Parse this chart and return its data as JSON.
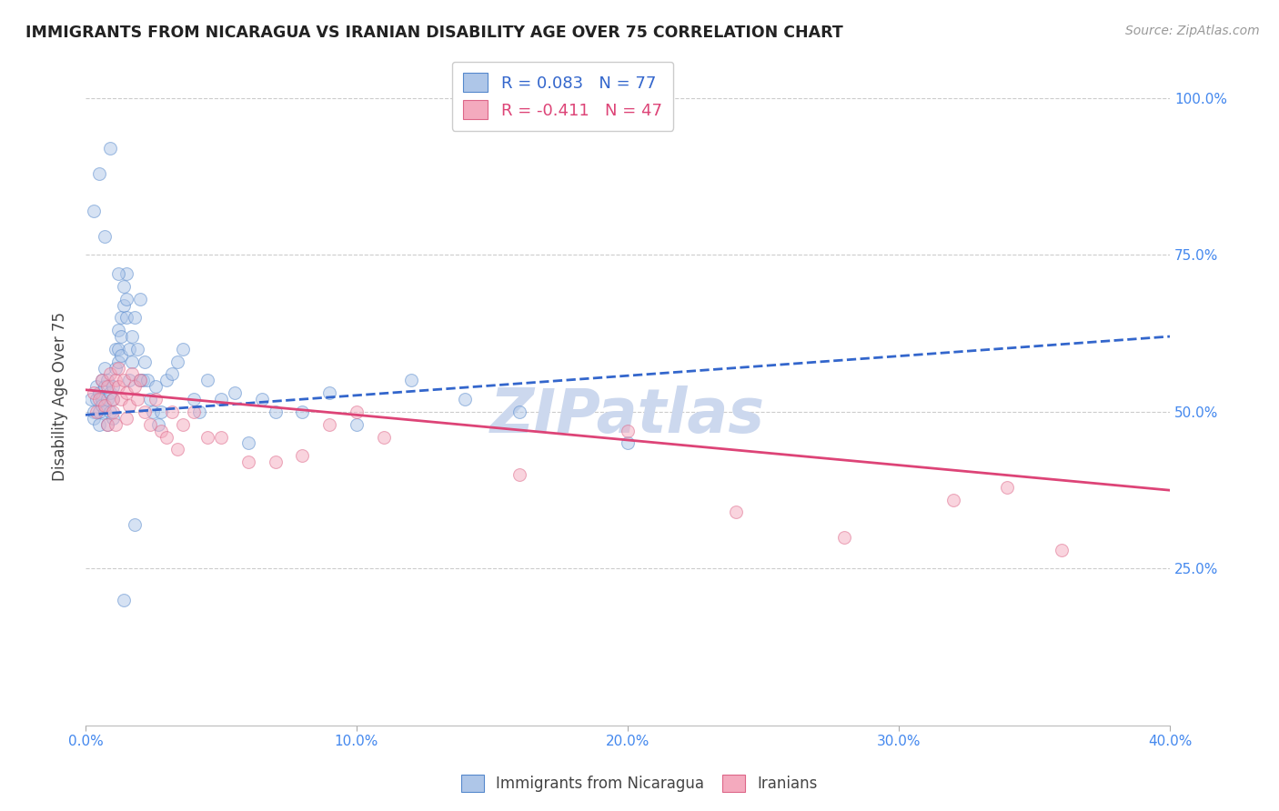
{
  "title": "IMMIGRANTS FROM NICARAGUA VS IRANIAN DISABILITY AGE OVER 75 CORRELATION CHART",
  "source": "Source: ZipAtlas.com",
  "ylabel": "Disability Age Over 75",
  "watermark": "ZIPatlas",
  "xlim": [
    0.0,
    0.4
  ],
  "ylim": [
    0.0,
    1.05
  ],
  "xtick_labels": [
    "0.0%",
    "10.0%",
    "20.0%",
    "30.0%",
    "40.0%"
  ],
  "xtick_vals": [
    0.0,
    0.1,
    0.2,
    0.3,
    0.4
  ],
  "ytick_labels": [
    "25.0%",
    "50.0%",
    "75.0%",
    "100.0%"
  ],
  "ytick_vals": [
    0.25,
    0.5,
    0.75,
    1.0
  ],
  "legend_r1": "R = 0.083",
  "legend_n1": "N = 77",
  "legend_r2": "R = -0.411",
  "legend_n2": "N = 47",
  "series1_color": "#aec6e8",
  "series1_edge": "#5588cc",
  "series2_color": "#f4aabe",
  "series2_edge": "#dd6688",
  "trend1_color": "#3366cc",
  "trend2_color": "#dd4477",
  "background_color": "#ffffff",
  "grid_color": "#cccccc",
  "title_color": "#222222",
  "axis_label_color": "#444444",
  "right_tick_color": "#4488ee",
  "source_color": "#999999",
  "watermark_color": "#ccd8ee",
  "series1_x": [
    0.002,
    0.003,
    0.003,
    0.004,
    0.004,
    0.005,
    0.005,
    0.005,
    0.006,
    0.006,
    0.006,
    0.007,
    0.007,
    0.007,
    0.008,
    0.008,
    0.008,
    0.009,
    0.009,
    0.01,
    0.01,
    0.01,
    0.011,
    0.011,
    0.012,
    0.012,
    0.012,
    0.013,
    0.013,
    0.013,
    0.014,
    0.014,
    0.015,
    0.015,
    0.015,
    0.016,
    0.016,
    0.017,
    0.017,
    0.018,
    0.019,
    0.02,
    0.02,
    0.021,
    0.022,
    0.023,
    0.024,
    0.025,
    0.026,
    0.027,
    0.028,
    0.03,
    0.032,
    0.034,
    0.036,
    0.04,
    0.042,
    0.045,
    0.05,
    0.055,
    0.06,
    0.065,
    0.07,
    0.08,
    0.09,
    0.1,
    0.12,
    0.14,
    0.16,
    0.2,
    0.003,
    0.005,
    0.007,
    0.009,
    0.012,
    0.014,
    0.018
  ],
  "series1_y": [
    0.52,
    0.5,
    0.49,
    0.52,
    0.54,
    0.5,
    0.48,
    0.53,
    0.52,
    0.55,
    0.51,
    0.5,
    0.57,
    0.54,
    0.52,
    0.55,
    0.48,
    0.53,
    0.5,
    0.52,
    0.54,
    0.49,
    0.57,
    0.6,
    0.6,
    0.58,
    0.63,
    0.62,
    0.59,
    0.65,
    0.67,
    0.7,
    0.68,
    0.72,
    0.65,
    0.6,
    0.55,
    0.58,
    0.62,
    0.65,
    0.6,
    0.68,
    0.55,
    0.55,
    0.58,
    0.55,
    0.52,
    0.5,
    0.54,
    0.48,
    0.5,
    0.55,
    0.56,
    0.58,
    0.6,
    0.52,
    0.5,
    0.55,
    0.52,
    0.53,
    0.45,
    0.52,
    0.5,
    0.5,
    0.53,
    0.48,
    0.55,
    0.52,
    0.5,
    0.45,
    0.82,
    0.88,
    0.78,
    0.92,
    0.72,
    0.2,
    0.32
  ],
  "series2_x": [
    0.003,
    0.004,
    0.005,
    0.006,
    0.007,
    0.008,
    0.008,
    0.009,
    0.01,
    0.01,
    0.011,
    0.011,
    0.012,
    0.012,
    0.013,
    0.014,
    0.015,
    0.015,
    0.016,
    0.017,
    0.018,
    0.019,
    0.02,
    0.022,
    0.024,
    0.026,
    0.028,
    0.03,
    0.032,
    0.034,
    0.036,
    0.04,
    0.045,
    0.05,
    0.06,
    0.07,
    0.08,
    0.09,
    0.1,
    0.11,
    0.16,
    0.2,
    0.24,
    0.28,
    0.32,
    0.34,
    0.36
  ],
  "series2_y": [
    0.53,
    0.5,
    0.52,
    0.55,
    0.51,
    0.54,
    0.48,
    0.56,
    0.52,
    0.5,
    0.55,
    0.48,
    0.54,
    0.57,
    0.52,
    0.55,
    0.53,
    0.49,
    0.51,
    0.56,
    0.54,
    0.52,
    0.55,
    0.5,
    0.48,
    0.52,
    0.47,
    0.46,
    0.5,
    0.44,
    0.48,
    0.5,
    0.46,
    0.46,
    0.42,
    0.42,
    0.43,
    0.48,
    0.5,
    0.46,
    0.4,
    0.47,
    0.34,
    0.3,
    0.36,
    0.38,
    0.28
  ],
  "trend1_x": [
    0.0,
    0.4
  ],
  "trend1_y": [
    0.495,
    0.62
  ],
  "trend2_x": [
    0.0,
    0.4
  ],
  "trend2_y": [
    0.535,
    0.375
  ],
  "marker_size": 100,
  "marker_alpha": 0.5,
  "trend_linewidth": 2.0
}
